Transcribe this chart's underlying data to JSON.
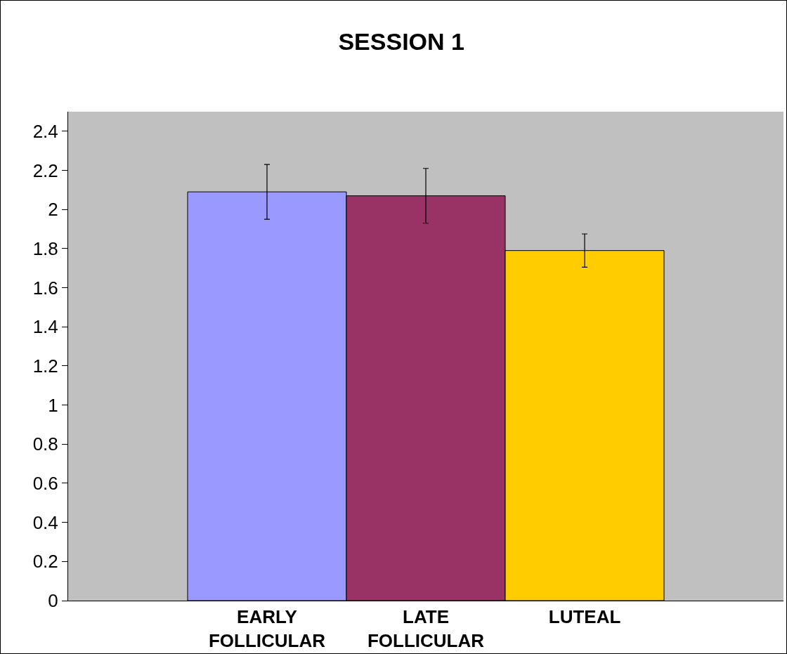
{
  "chart_data": {
    "type": "bar",
    "title": "SESSION 1",
    "categories": [
      "EARLY FOLLICULAR",
      "LATE FOLLICULAR",
      "LUTEAL"
    ],
    "values": [
      2.09,
      2.07,
      1.79
    ],
    "colors": [
      "#9999ff",
      "#993366",
      "#ffcc00"
    ],
    "errors": [
      0.14,
      0.14,
      0.085
    ],
    "ylim": [
      0,
      2.5
    ],
    "yticks": [
      0,
      0.2,
      0.4,
      0.6,
      0.8,
      1,
      1.2,
      1.4,
      1.6,
      1.8,
      2,
      2.2,
      2.4
    ],
    "grid": false
  }
}
